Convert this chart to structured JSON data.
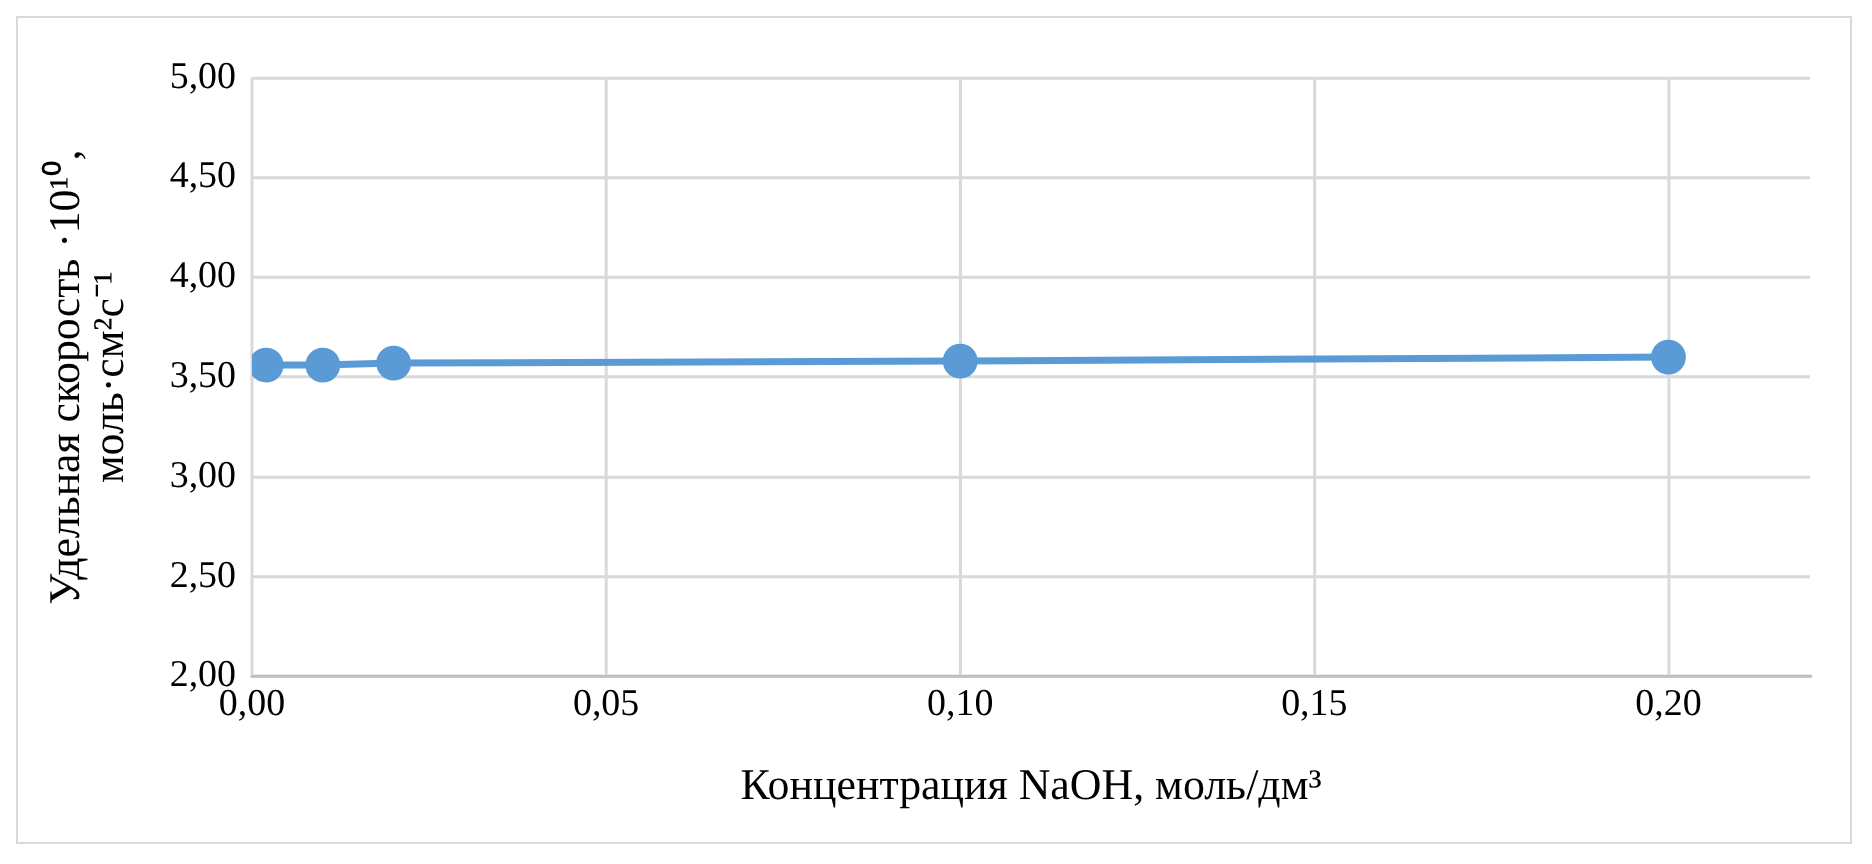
{
  "chart_data": {
    "type": "line",
    "xlabel": "Концентрация NaOH, моль/дм³",
    "ylabel": "Удельная скорость ·10¹⁰,\nмоль·см²с⁻¹",
    "x": [
      0.002,
      0.01,
      0.02,
      0.1,
      0.2
    ],
    "series": [
      {
        "color": "#5b9bd5",
        "values": [
          3.56,
          3.56,
          3.57,
          3.58,
          3.6
        ]
      }
    ],
    "xlim": [
      0,
      0.22
    ],
    "xticks": [
      {
        "value": 0,
        "label": "0,00"
      },
      {
        "value": 0.05,
        "label": "0,05"
      },
      {
        "value": 0.1,
        "label": "0,10"
      },
      {
        "value": 0.15,
        "label": "0,15"
      },
      {
        "value": 0.2,
        "label": "0,20"
      }
    ],
    "ylim": [
      2,
      5
    ],
    "yticks": [
      {
        "value": 2,
        "label": "2,00"
      },
      {
        "value": 2.5,
        "label": "2,50"
      },
      {
        "value": 3,
        "label": "3,00"
      },
      {
        "value": 3.5,
        "label": "3,50"
      },
      {
        "value": 4,
        "label": "4,00"
      },
      {
        "value": 4.5,
        "label": "4,50"
      },
      {
        "value": 5,
        "label": "5,00"
      }
    ],
    "grid": true,
    "legend": false,
    "marker": "circle",
    "line_style": "solid"
  }
}
